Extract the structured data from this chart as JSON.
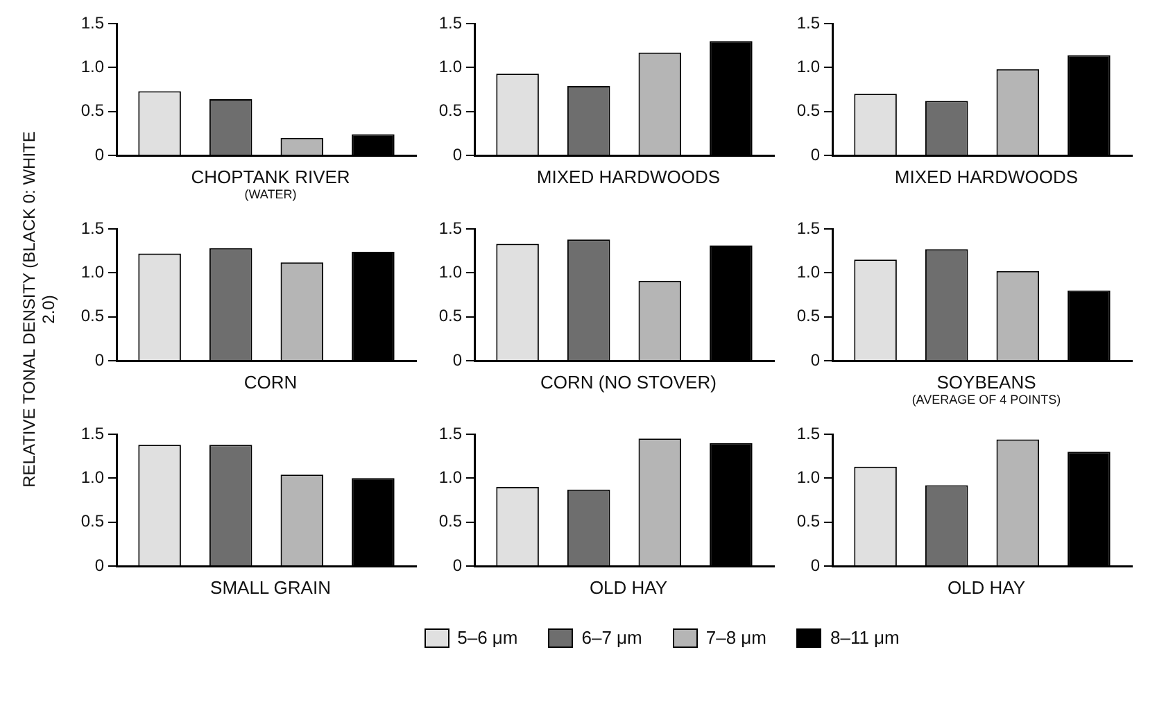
{
  "chart_data": [
    {
      "type": "bar",
      "categories": [
        null
      ],
      "xlabel": "CHOPTANK RIVER",
      "annotations": [
        "(WATER)"
      ],
      "ylim": [
        0,
        1.5
      ],
      "yticks": [
        {
          "value": 0,
          "label": "0"
        },
        {
          "value": 0.5,
          "label": "0.5"
        },
        {
          "value": 1,
          "label": "1.0"
        },
        {
          "value": 1.5,
          "label": "1.5"
        }
      ],
      "series": [
        {
          "color": "#e0e0e0",
          "values": [
            0.73
          ]
        },
        {
          "color": "#6e6e6e",
          "values": [
            0.64
          ]
        },
        {
          "color": "#b5b5b5",
          "values": [
            0.2
          ]
        },
        {
          "color": "#000000",
          "values": [
            0.24
          ]
        }
      ]
    },
    {
      "type": "bar",
      "categories": [
        null
      ],
      "xlabel": "MIXED HARDWOODS",
      "ylim": [
        0,
        1.5
      ],
      "yticks": [
        {
          "value": 0,
          "label": "0"
        },
        {
          "value": 0.5,
          "label": "0.5"
        },
        {
          "value": 1,
          "label": "1.0"
        },
        {
          "value": 1.5,
          "label": "1.5"
        }
      ],
      "series": [
        {
          "color": "#e0e0e0",
          "values": [
            0.93
          ]
        },
        {
          "color": "#6e6e6e",
          "values": [
            0.79
          ]
        },
        {
          "color": "#b5b5b5",
          "values": [
            1.17
          ]
        },
        {
          "color": "#000000",
          "values": [
            1.3
          ]
        }
      ]
    },
    {
      "type": "bar",
      "categories": [
        null
      ],
      "xlabel": "MIXED HARDWOODS",
      "ylim": [
        0,
        1.5
      ],
      "yticks": [
        {
          "value": 0,
          "label": "0"
        },
        {
          "value": 0.5,
          "label": "0.5"
        },
        {
          "value": 1,
          "label": "1.0"
        },
        {
          "value": 1.5,
          "label": "1.5"
        }
      ],
      "series": [
        {
          "color": "#e0e0e0",
          "values": [
            0.7
          ]
        },
        {
          "color": "#6e6e6e",
          "values": [
            0.62
          ]
        },
        {
          "color": "#b5b5b5",
          "values": [
            0.98
          ]
        },
        {
          "color": "#000000",
          "values": [
            1.14
          ]
        }
      ]
    },
    {
      "type": "bar",
      "categories": [
        null
      ],
      "xlabel": "CORN",
      "ylabel": "RELATIVE TONAL DENSITY (BLACK 0: WHITE 2.0)",
      "ylim": [
        0,
        1.5
      ],
      "yticks": [
        {
          "value": 0,
          "label": "0"
        },
        {
          "value": 0.5,
          "label": "0.5"
        },
        {
          "value": 1,
          "label": "1.0"
        },
        {
          "value": 1.5,
          "label": "1.5"
        }
      ],
      "series": [
        {
          "color": "#e0e0e0",
          "values": [
            1.22
          ]
        },
        {
          "color": "#6e6e6e",
          "values": [
            1.28
          ]
        },
        {
          "color": "#b5b5b5",
          "values": [
            1.12
          ]
        },
        {
          "color": "#000000",
          "values": [
            1.24
          ]
        }
      ]
    },
    {
      "type": "bar",
      "categories": [
        null
      ],
      "xlabel": "CORN (NO STOVER)",
      "ylim": [
        0,
        1.5
      ],
      "yticks": [
        {
          "value": 0,
          "label": "0"
        },
        {
          "value": 0.5,
          "label": "0.5"
        },
        {
          "value": 1,
          "label": "1.0"
        },
        {
          "value": 1.5,
          "label": "1.5"
        }
      ],
      "series": [
        {
          "color": "#e0e0e0",
          "values": [
            1.33
          ]
        },
        {
          "color": "#6e6e6e",
          "values": [
            1.38
          ]
        },
        {
          "color": "#b5b5b5",
          "values": [
            0.91
          ]
        },
        {
          "color": "#000000",
          "values": [
            1.31
          ]
        }
      ]
    },
    {
      "type": "bar",
      "categories": [
        null
      ],
      "xlabel": "SOYBEANS",
      "annotations": [
        "(AVERAGE OF 4 POINTS)"
      ],
      "ylim": [
        0,
        1.5
      ],
      "yticks": [
        {
          "value": 0,
          "label": "0"
        },
        {
          "value": 0.5,
          "label": "0.5"
        },
        {
          "value": 1,
          "label": "1.0"
        },
        {
          "value": 1.5,
          "label": "1.5"
        }
      ],
      "series": [
        {
          "color": "#e0e0e0",
          "values": [
            1.15
          ]
        },
        {
          "color": "#6e6e6e",
          "values": [
            1.27
          ]
        },
        {
          "color": "#b5b5b5",
          "values": [
            1.02
          ]
        },
        {
          "color": "#000000",
          "values": [
            0.8
          ]
        }
      ]
    },
    {
      "type": "bar",
      "categories": [
        null
      ],
      "xlabel": "SMALL GRAIN",
      "ylim": [
        0,
        1.5
      ],
      "yticks": [
        {
          "value": 0,
          "label": "0"
        },
        {
          "value": 0.5,
          "label": "0.5"
        },
        {
          "value": 1,
          "label": "1.0"
        },
        {
          "value": 1.5,
          "label": "1.5"
        }
      ],
      "series": [
        {
          "color": "#e0e0e0",
          "values": [
            1.38
          ]
        },
        {
          "color": "#6e6e6e",
          "values": [
            1.38
          ]
        },
        {
          "color": "#b5b5b5",
          "values": [
            1.04
          ]
        },
        {
          "color": "#000000",
          "values": [
            1.0
          ]
        }
      ]
    },
    {
      "type": "bar",
      "categories": [
        null
      ],
      "xlabel": "OLD HAY",
      "legend": "bottom",
      "ylim": [
        0,
        1.5
      ],
      "yticks": [
        {
          "value": 0,
          "label": "0"
        },
        {
          "value": 0.5,
          "label": "0.5"
        },
        {
          "value": 1,
          "label": "1.0"
        },
        {
          "value": 1.5,
          "label": "1.5"
        }
      ],
      "series": [
        {
          "name": "5–6 μm",
          "color": "#e0e0e0",
          "values": [
            0.9
          ]
        },
        {
          "name": "6–7 μm",
          "color": "#6e6e6e",
          "values": [
            0.87
          ]
        },
        {
          "name": "7–8 μm",
          "color": "#b5b5b5",
          "values": [
            1.45
          ]
        },
        {
          "name": "8–11 μm",
          "color": "#000000",
          "values": [
            1.4
          ]
        }
      ]
    },
    {
      "type": "bar",
      "categories": [
        null
      ],
      "xlabel": "OLD HAY",
      "ylim": [
        0,
        1.5
      ],
      "yticks": [
        {
          "value": 0,
          "label": "0"
        },
        {
          "value": 0.5,
          "label": "0.5"
        },
        {
          "value": 1,
          "label": "1.0"
        },
        {
          "value": 1.5,
          "label": "1.5"
        }
      ],
      "series": [
        {
          "color": "#e0e0e0",
          "values": [
            1.13
          ]
        },
        {
          "color": "#6e6e6e",
          "values": [
            0.92
          ]
        },
        {
          "color": "#b5b5b5",
          "values": [
            1.44
          ]
        },
        {
          "color": "#000000",
          "values": [
            1.3
          ]
        }
      ]
    }
  ]
}
